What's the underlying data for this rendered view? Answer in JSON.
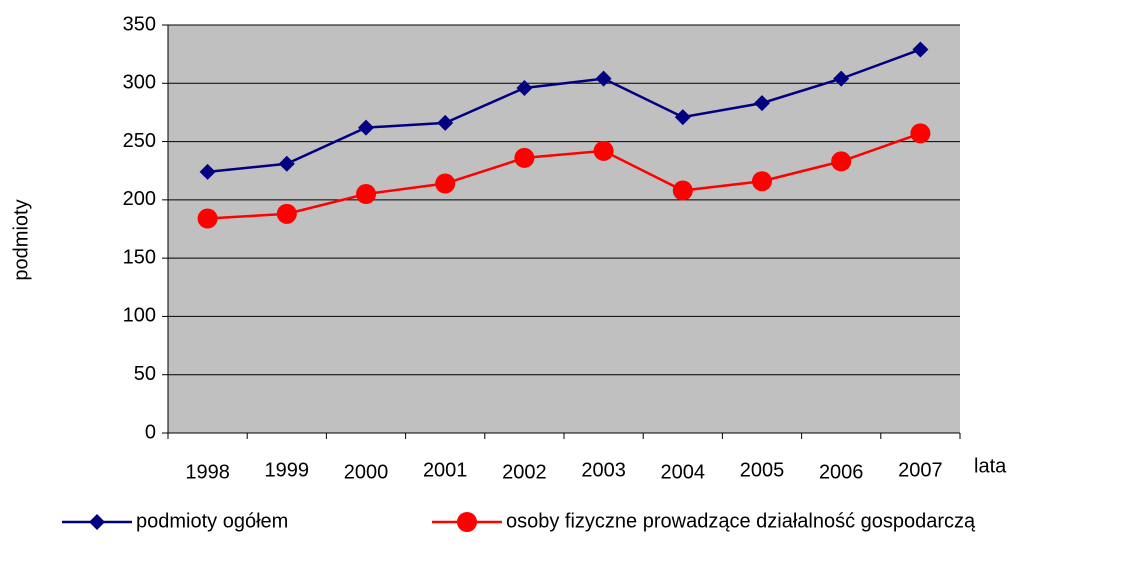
{
  "chart_data": {
    "type": "line",
    "categories": [
      "1998",
      "1999",
      "2000",
      "2001",
      "2002",
      "2003",
      "2004",
      "2005",
      "2006",
      "2007"
    ],
    "series": [
      {
        "name": "podmioty ogółem",
        "color": "#000080",
        "marker": "diamond",
        "values": [
          224,
          231,
          262,
          266,
          296,
          304,
          271,
          283,
          304,
          329
        ]
      },
      {
        "name": "osoby fizyczne prowadzące działalność gospodarczą",
        "color": "#ff0000",
        "marker": "circle",
        "values": [
          184,
          188,
          205,
          214,
          236,
          242,
          208,
          216,
          233,
          257
        ]
      }
    ],
    "xlabel": "lata",
    "ylabel": "podmioty",
    "ylim": [
      0,
      350
    ],
    "yticks": [
      0,
      50,
      100,
      150,
      200,
      250,
      300,
      350
    ],
    "grid": true,
    "plot_background": "#c0c0c0",
    "legend": "bottom"
  }
}
